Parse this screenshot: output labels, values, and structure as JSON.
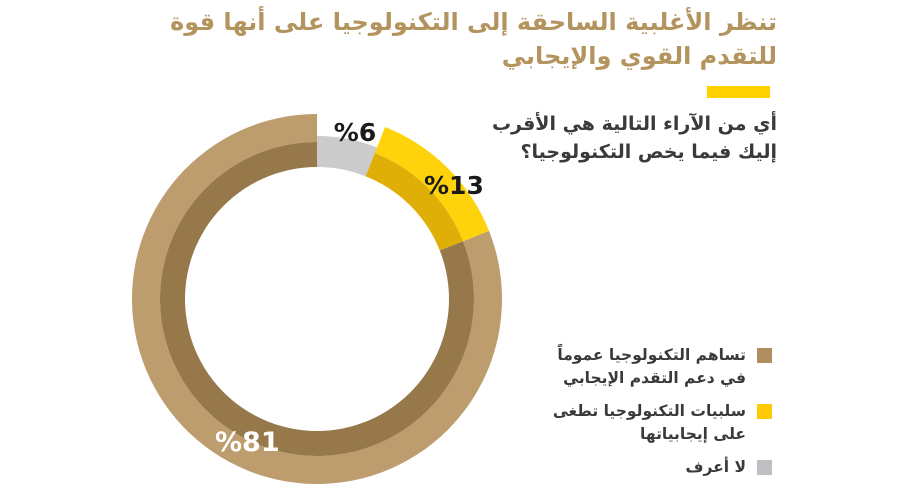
{
  "header": {
    "title_line1": "تنظر الأغلبية الساحقة إلى التكنولوجيا على أنها قوة",
    "title_line2": "للتقدم القوي والإيجابي",
    "title_color": "#B4945E",
    "accent_bar_color": "#FFD200"
  },
  "question": {
    "line1": "أي من الآراء التالية هي الأقرب",
    "line2": "إليك فيما يخص التكنولوجيا؟",
    "text_color": "#3A3A3A"
  },
  "chart_data": {
    "type": "pie",
    "variant": "donut",
    "title": "تنظر الأغلبية الساحقة إلى التكنولوجيا على أنها قوة للتقدم القوي والإيجابي",
    "question": "أي من الآراء التالية هي الأقرب إليك فيما يخص التكنولوجيا؟",
    "start_angle_deg": 0,
    "direction": "counterclockwise_from_top",
    "legend_position": "right",
    "segments": [
      {
        "value": 81,
        "display": "%81",
        "label_line1": "تساهم التكنولوجيا عموماً",
        "label_line2": "في دعم التقدم الإيجابي",
        "color": "#BD9C6D",
        "color_dark": "#96784A",
        "legend_color": "#B18E60",
        "label_text_color": "#FFFFFF"
      },
      {
        "value": 13,
        "display": "%13",
        "label_line1": "سلبيات التكنولوجيا تطغى",
        "label_line2": "على إيجابياتها",
        "color": "#FFD30B",
        "color_dark": "#DFAE07",
        "legend_color": "#FFCA05",
        "label_text_color": "#1A1A1A"
      },
      {
        "value": 6,
        "display": "%6",
        "label_line1": "لا أعرف",
        "label_line2": "",
        "color": "#CBCBCB",
        "legend_color": "#BDBFC3",
        "label_text_color": "#1A1A1A"
      }
    ]
  }
}
